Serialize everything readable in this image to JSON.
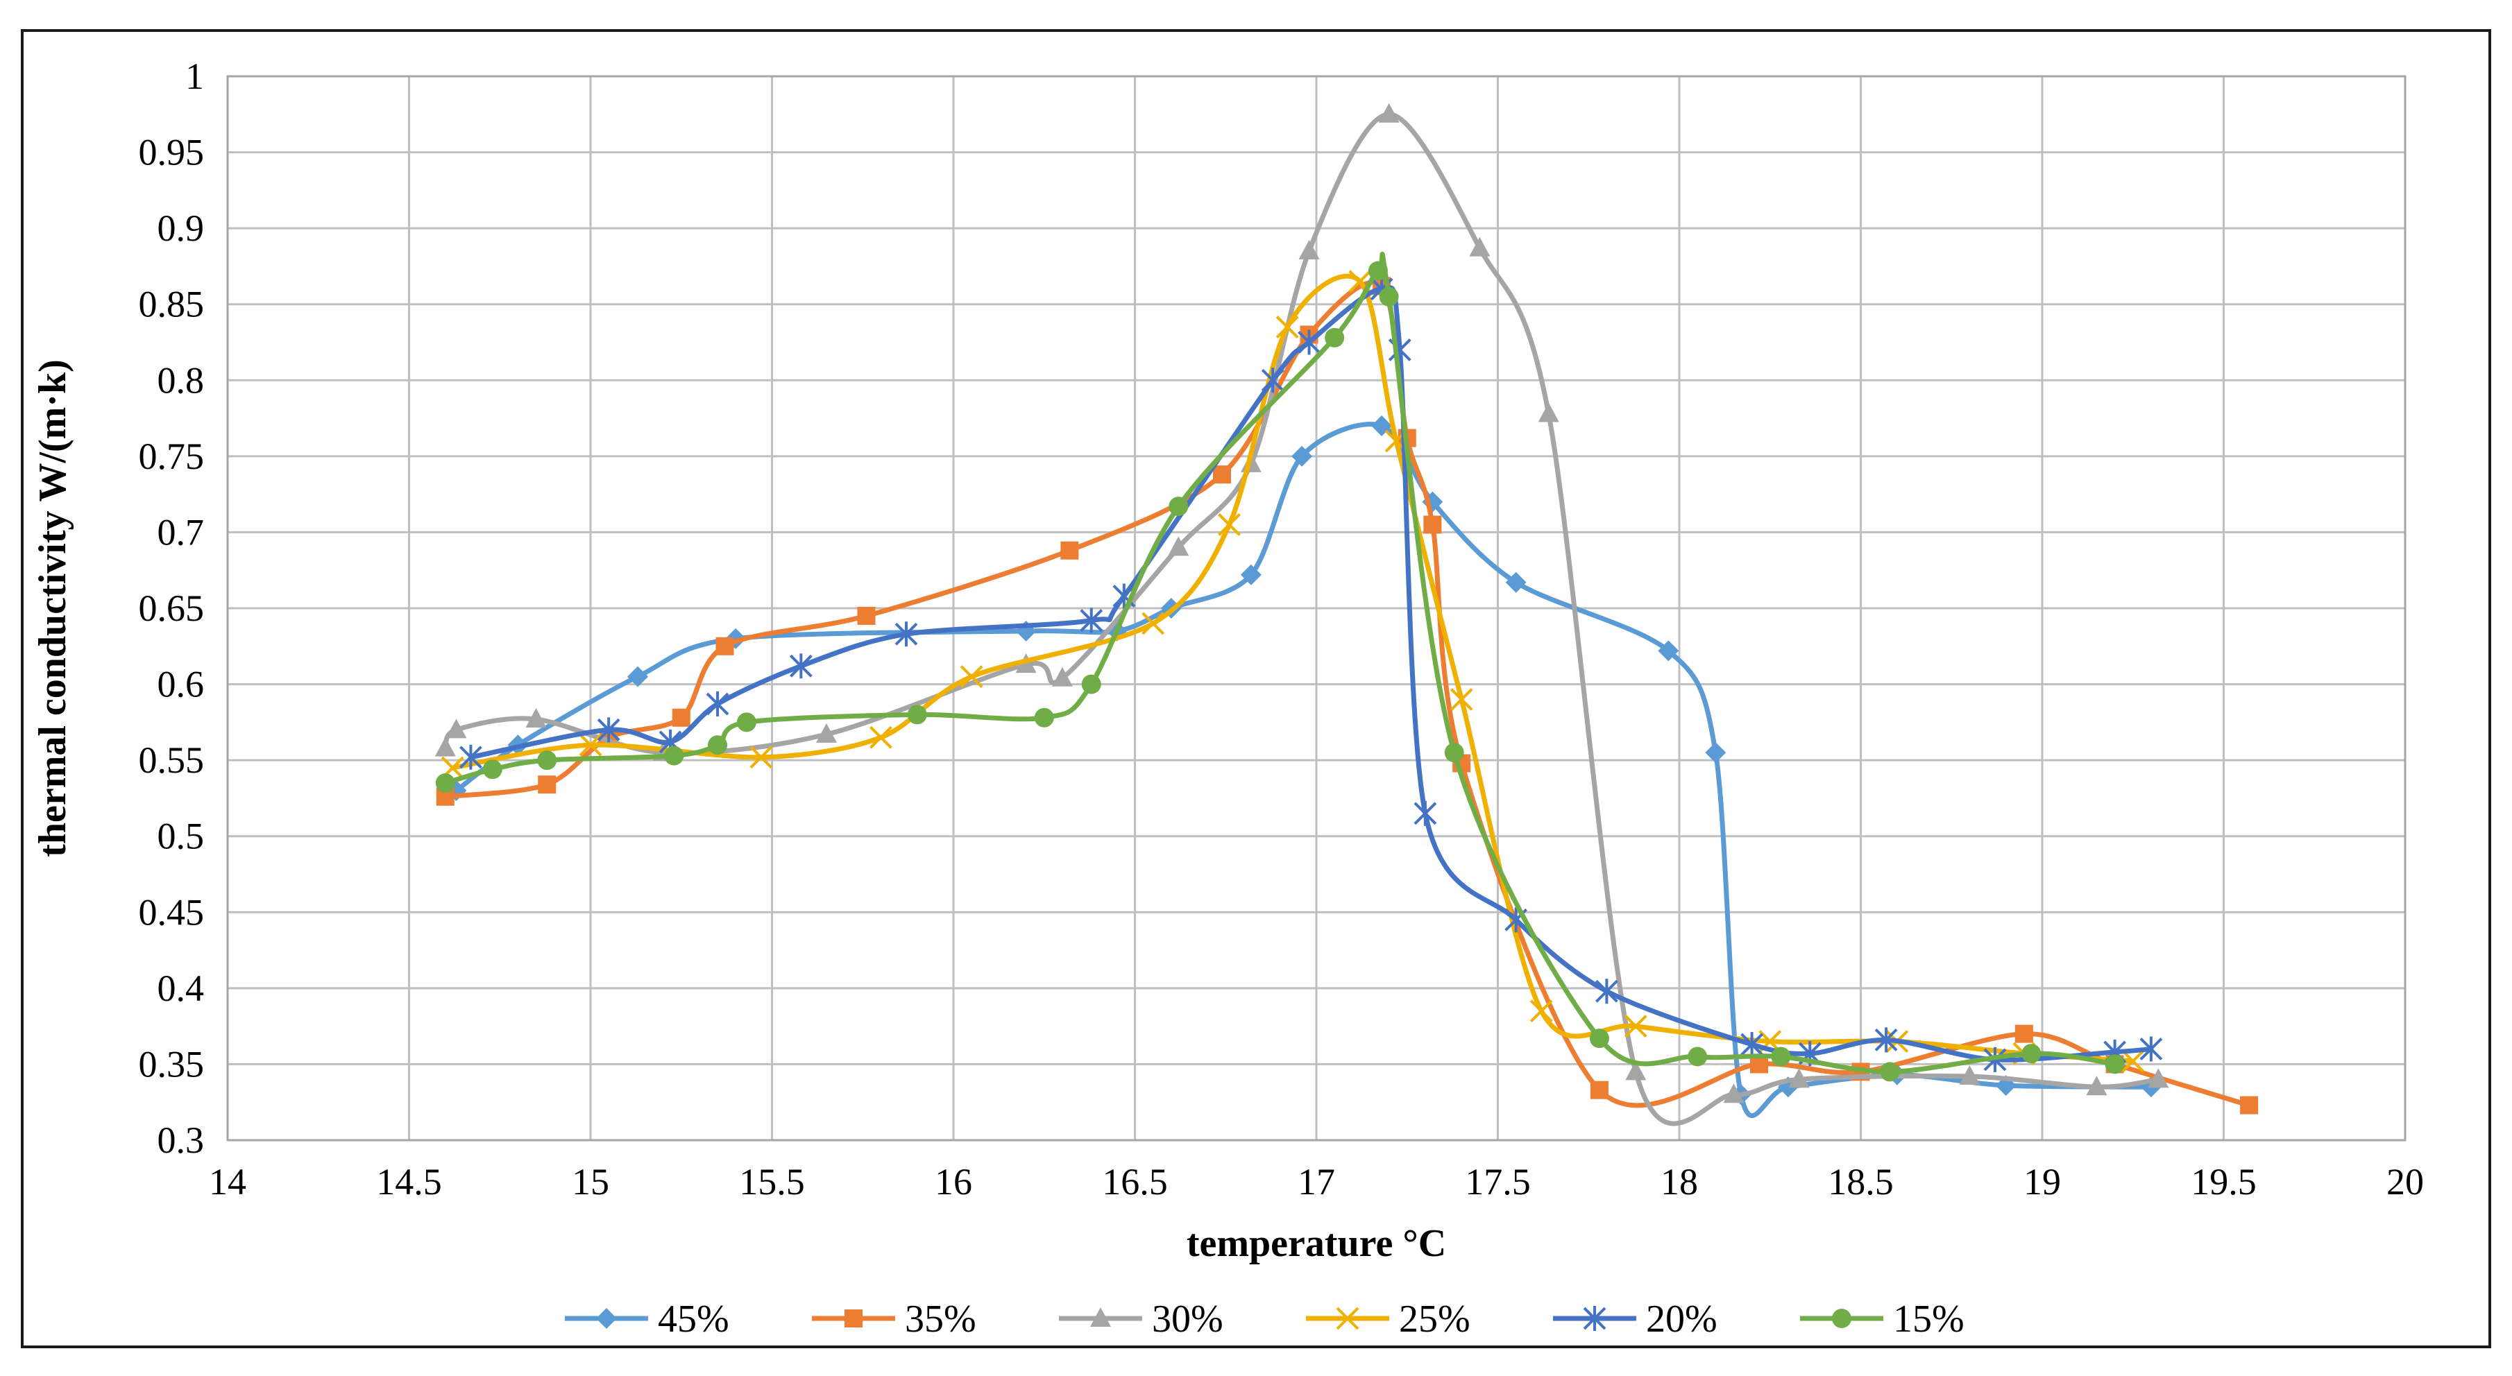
{
  "chart_data": {
    "type": "line",
    "title": "",
    "xlabel": "temperature °C",
    "ylabel": "thermal conductivity W/(m·k)",
    "xlim": [
      14,
      20
    ],
    "ylim": [
      0.3,
      1.0
    ],
    "xticks": [
      14,
      14.5,
      15,
      15.5,
      16,
      16.5,
      17,
      17.5,
      18,
      18.5,
      19,
      19.5,
      20
    ],
    "xtick_labels": [
      "14",
      "14.5",
      "15",
      "15.5",
      "16",
      "16.5",
      "17",
      "17.5",
      "18",
      "18.5",
      "19",
      "19.5",
      "20"
    ],
    "yticks": [
      0.3,
      0.35,
      0.4,
      0.45,
      0.5,
      0.55,
      0.6,
      0.65,
      0.7,
      0.75,
      0.8,
      0.85,
      0.9,
      0.95,
      1.0
    ],
    "ytick_labels": [
      "0.3",
      "0.35",
      "0.4",
      "0.45",
      "0.5",
      "0.55",
      "0.6",
      "0.65",
      "0.7",
      "0.75",
      "0.8",
      "0.85",
      "0.9",
      "0.95",
      "1"
    ],
    "grid": true,
    "legend_position": "bottom",
    "series": [
      {
        "name": "45%",
        "color": "#5b9bd5",
        "marker": "diamond",
        "points": [
          [
            14.63,
            0.53
          ],
          [
            14.8,
            0.56
          ],
          [
            15.13,
            0.605
          ],
          [
            15.4,
            0.63
          ],
          [
            16.2,
            0.635
          ],
          [
            16.45,
            0.635
          ],
          [
            16.6,
            0.65
          ],
          [
            16.82,
            0.672
          ],
          [
            16.96,
            0.75
          ],
          [
            17.18,
            0.77
          ],
          [
            17.32,
            0.72
          ],
          [
            17.55,
            0.667
          ],
          [
            17.97,
            0.622
          ],
          [
            18.1,
            0.555
          ],
          [
            18.17,
            0.33
          ],
          [
            18.3,
            0.335
          ],
          [
            18.6,
            0.343
          ],
          [
            18.9,
            0.336
          ],
          [
            19.3,
            0.335
          ]
        ]
      },
      {
        "name": "35%",
        "color": "#ed7d31",
        "marker": "square",
        "points": [
          [
            14.6,
            0.526
          ],
          [
            14.88,
            0.534
          ],
          [
            15.05,
            0.565
          ],
          [
            15.25,
            0.578
          ],
          [
            15.37,
            0.625
          ],
          [
            15.76,
            0.645
          ],
          [
            16.32,
            0.688
          ],
          [
            16.74,
            0.738
          ],
          [
            16.98,
            0.83
          ],
          [
            17.18,
            0.862
          ],
          [
            17.25,
            0.762
          ],
          [
            17.32,
            0.705
          ],
          [
            17.4,
            0.548
          ],
          [
            17.78,
            0.333
          ],
          [
            18.22,
            0.35
          ],
          [
            18.5,
            0.345
          ],
          [
            18.95,
            0.37
          ],
          [
            19.2,
            0.35
          ],
          [
            19.57,
            0.323
          ]
        ]
      },
      {
        "name": "30%",
        "color": "#a5a5a5",
        "marker": "triangle",
        "points": [
          [
            14.6,
            0.558
          ],
          [
            14.63,
            0.57
          ],
          [
            14.85,
            0.577
          ],
          [
            15.2,
            0.555
          ],
          [
            15.65,
            0.567
          ],
          [
            16.2,
            0.613
          ],
          [
            16.3,
            0.604
          ],
          [
            16.62,
            0.69
          ],
          [
            16.82,
            0.745
          ],
          [
            16.98,
            0.885
          ],
          [
            17.2,
            0.975
          ],
          [
            17.45,
            0.887
          ],
          [
            17.64,
            0.778
          ],
          [
            17.88,
            0.345
          ],
          [
            18.15,
            0.33
          ],
          [
            18.33,
            0.34
          ],
          [
            18.8,
            0.342
          ],
          [
            19.15,
            0.335
          ],
          [
            19.32,
            0.34
          ]
        ]
      },
      {
        "name": "25%",
        "color": "#f0b000",
        "marker": "x",
        "points": [
          [
            14.62,
            0.545
          ],
          [
            15.0,
            0.56
          ],
          [
            15.47,
            0.552
          ],
          [
            15.8,
            0.565
          ],
          [
            16.05,
            0.605
          ],
          [
            16.55,
            0.64
          ],
          [
            16.76,
            0.705
          ],
          [
            16.92,
            0.835
          ],
          [
            17.12,
            0.865
          ],
          [
            17.22,
            0.76
          ],
          [
            17.4,
            0.59
          ],
          [
            17.62,
            0.385
          ],
          [
            17.88,
            0.375
          ],
          [
            18.25,
            0.365
          ],
          [
            18.6,
            0.365
          ],
          [
            18.95,
            0.357
          ],
          [
            19.25,
            0.352
          ]
        ]
      },
      {
        "name": "20%",
        "color": "#4472c4",
        "marker": "asterisk",
        "points": [
          [
            14.67,
            0.552
          ],
          [
            15.05,
            0.57
          ],
          [
            15.22,
            0.562
          ],
          [
            15.35,
            0.587
          ],
          [
            15.58,
            0.612
          ],
          [
            15.87,
            0.633
          ],
          [
            16.38,
            0.642
          ],
          [
            16.47,
            0.658
          ],
          [
            16.88,
            0.8
          ],
          [
            16.98,
            0.825
          ],
          [
            17.18,
            0.86
          ],
          [
            17.23,
            0.82
          ],
          [
            17.3,
            0.515
          ],
          [
            17.55,
            0.445
          ],
          [
            17.8,
            0.398
          ],
          [
            18.2,
            0.363
          ],
          [
            18.36,
            0.357
          ],
          [
            18.57,
            0.366
          ],
          [
            18.87,
            0.353
          ],
          [
            19.2,
            0.358
          ],
          [
            19.3,
            0.36
          ]
        ]
      },
      {
        "name": "15%",
        "color": "#70ad47",
        "marker": "circle",
        "points": [
          [
            14.6,
            0.535
          ],
          [
            14.73,
            0.544
          ],
          [
            14.88,
            0.55
          ],
          [
            15.23,
            0.553
          ],
          [
            15.35,
            0.56
          ],
          [
            15.43,
            0.575
          ],
          [
            15.9,
            0.58
          ],
          [
            16.25,
            0.578
          ],
          [
            16.38,
            0.6
          ],
          [
            16.62,
            0.717
          ],
          [
            17.05,
            0.828
          ],
          [
            17.17,
            0.872
          ],
          [
            17.2,
            0.855
          ],
          [
            17.38,
            0.555
          ],
          [
            17.78,
            0.367
          ],
          [
            18.05,
            0.355
          ],
          [
            18.28,
            0.355
          ],
          [
            18.58,
            0.345
          ],
          [
            18.97,
            0.357
          ],
          [
            19.2,
            0.35
          ]
        ]
      }
    ]
  }
}
